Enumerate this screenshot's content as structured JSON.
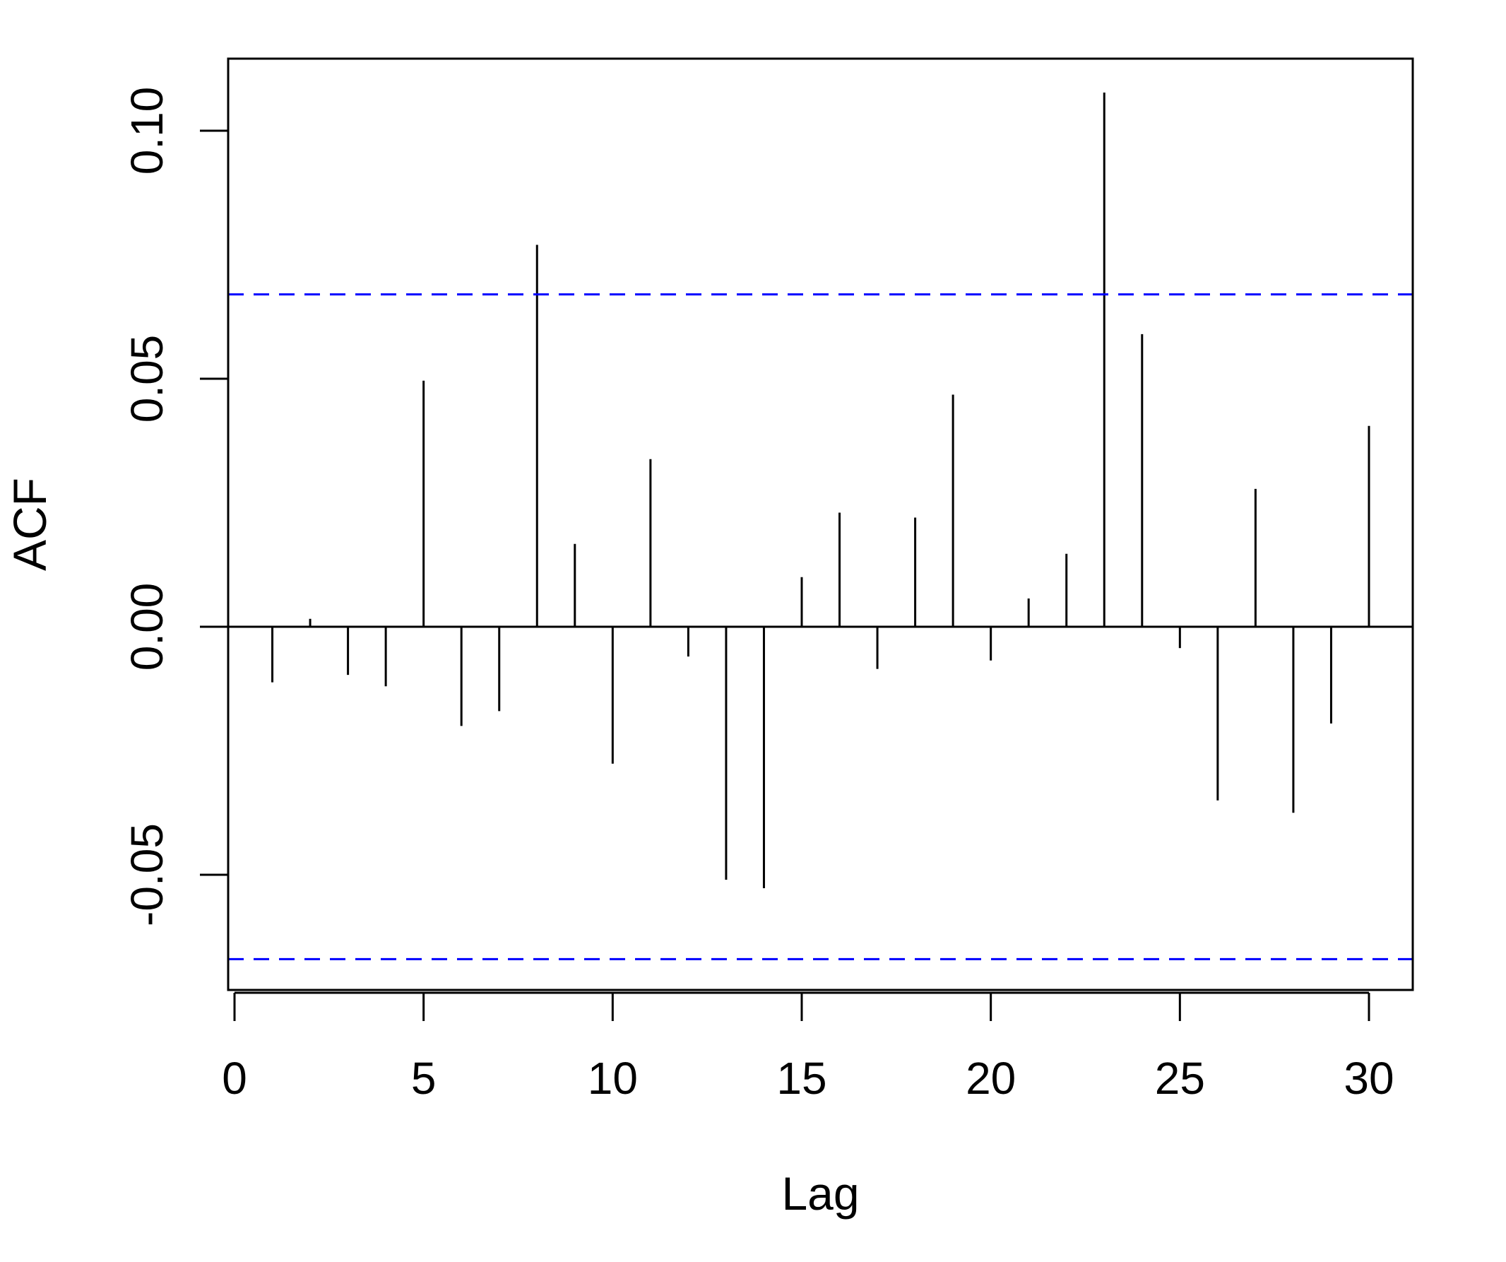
{
  "chart_data": {
    "type": "bar",
    "title": "",
    "xlabel": "Lag",
    "ylabel": "ACF",
    "x": [
      1,
      2,
      3,
      4,
      5,
      6,
      7,
      8,
      9,
      10,
      11,
      12,
      13,
      14,
      15,
      16,
      17,
      18,
      19,
      20,
      21,
      22,
      23,
      24,
      25,
      26,
      27,
      28,
      29,
      30
    ],
    "values": [
      -0.0112,
      0.0016,
      -0.0097,
      -0.012,
      0.0496,
      -0.02,
      -0.017,
      0.077,
      0.0167,
      -0.0276,
      0.0338,
      -0.006,
      -0.051,
      -0.0527,
      0.01,
      0.023,
      -0.0085,
      0.022,
      0.0468,
      -0.0068,
      0.0057,
      0.0147,
      0.1077,
      0.059,
      -0.0043,
      -0.035,
      0.0278,
      -0.0375,
      -0.0195,
      0.0405
    ],
    "confidence_bounds": [
      0.067,
      -0.067
    ],
    "zero_line": true,
    "xlim": [
      0,
      30
    ],
    "ylim": [
      -0.0735,
      0.115
    ],
    "x_ticks": [
      "0",
      "5",
      "10",
      "15",
      "20",
      "25",
      "30"
    ],
    "y_ticks": [
      "-0.05",
      "0.00",
      "0.05",
      "0.10"
    ],
    "colors": {
      "bars": "#000000",
      "confidence_line": "#0000ff",
      "frame": "#000000"
    },
    "grid": false,
    "legend": "none"
  }
}
